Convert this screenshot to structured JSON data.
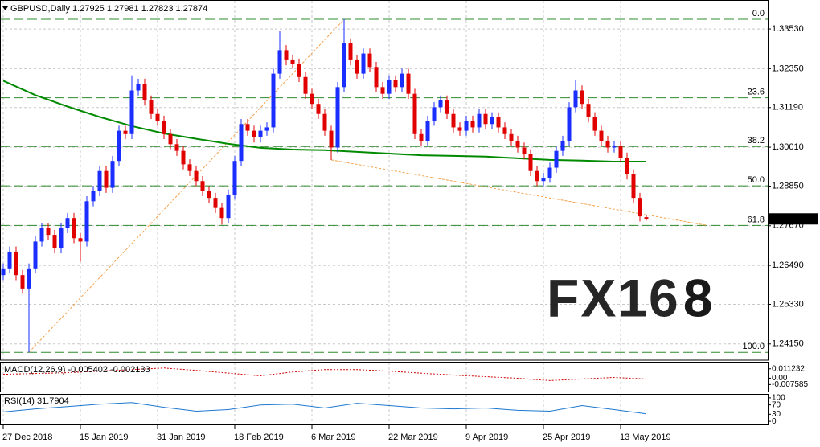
{
  "chart_data": {
    "type": "candlestick",
    "symbol": "GBPUSD,Daily",
    "colors": {
      "up": "#1a2eff",
      "down": "#e00000"
    },
    "ohlc": [
      [
        1.262,
        1.2655,
        1.2605,
        1.264
      ],
      [
        1.264,
        1.2705,
        1.2625,
        1.269
      ],
      [
        1.269,
        1.2705,
        1.2605,
        1.262
      ],
      [
        1.262,
        1.2635,
        1.2565,
        1.258
      ],
      [
        1.258,
        1.2655,
        1.239,
        1.264
      ],
      [
        1.264,
        1.2735,
        1.2625,
        1.272
      ],
      [
        1.272,
        1.2775,
        1.2705,
        1.276
      ],
      [
        1.276,
        1.2775,
        1.2725,
        1.274
      ],
      [
        1.274,
        1.2755,
        1.2685,
        1.27
      ],
      [
        1.27,
        1.2775,
        1.2685,
        1.276
      ],
      [
        1.276,
        1.2805,
        1.2745,
        1.279
      ],
      [
        1.279,
        1.2805,
        1.2715,
        1.273
      ],
      [
        1.273,
        1.2745,
        1.266,
        1.272
      ],
      [
        1.272,
        1.2855,
        1.2705,
        1.284
      ],
      [
        1.284,
        1.2885,
        1.2825,
        1.287
      ],
      [
        1.287,
        1.2945,
        1.2855,
        1.293
      ],
      [
        1.293,
        1.2945,
        1.2865,
        1.288
      ],
      [
        1.288,
        1.2975,
        1.2865,
        1.296
      ],
      [
        1.296,
        1.3065,
        1.2945,
        1.305
      ],
      [
        1.305,
        1.3065,
        1.3025,
        1.304
      ],
      [
        1.304,
        1.3215,
        1.3025,
        1.317
      ],
      [
        1.317,
        1.3205,
        1.3155,
        1.319
      ],
      [
        1.319,
        1.3205,
        1.3125,
        1.314
      ],
      [
        1.314,
        1.3155,
        1.3085,
        1.31
      ],
      [
        1.31,
        1.3115,
        1.3065,
        1.308
      ],
      [
        1.308,
        1.3095,
        1.3025,
        1.304
      ],
      [
        1.304,
        1.3055,
        1.2995,
        1.301
      ],
      [
        1.301,
        1.3025,
        1.2975,
        1.299
      ],
      [
        1.299,
        1.3005,
        1.2935,
        1.295
      ],
      [
        1.295,
        1.2965,
        1.2915,
        1.293
      ],
      [
        1.293,
        1.2945,
        1.2885,
        1.29
      ],
      [
        1.29,
        1.2915,
        1.2855,
        1.287
      ],
      [
        1.287,
        1.2885,
        1.2835,
        1.285
      ],
      [
        1.285,
        1.2865,
        1.2805,
        1.282
      ],
      [
        1.282,
        1.2835,
        1.277,
        1.279
      ],
      [
        1.279,
        1.2875,
        1.2775,
        1.286
      ],
      [
        1.286,
        1.2975,
        1.2845,
        1.296
      ],
      [
        1.296,
        1.3085,
        1.2945,
        1.307
      ],
      [
        1.307,
        1.3085,
        1.3035,
        1.305
      ],
      [
        1.305,
        1.3065,
        1.3015,
        1.303
      ],
      [
        1.303,
        1.3065,
        1.3015,
        1.305
      ],
      [
        1.305,
        1.3075,
        1.3035,
        1.306
      ],
      [
        1.306,
        1.3235,
        1.3045,
        1.322
      ],
      [
        1.322,
        1.3348,
        1.3205,
        1.329
      ],
      [
        1.329,
        1.3305,
        1.3245,
        1.326
      ],
      [
        1.326,
        1.3275,
        1.3235,
        1.325
      ],
      [
        1.325,
        1.3265,
        1.3195,
        1.321
      ],
      [
        1.321,
        1.3225,
        1.3145,
        1.316
      ],
      [
        1.316,
        1.3175,
        1.3115,
        1.313
      ],
      [
        1.313,
        1.3145,
        1.3085,
        1.31
      ],
      [
        1.31,
        1.3115,
        1.3035,
        1.305
      ],
      [
        1.305,
        1.3065,
        1.2963,
        1.3
      ],
      [
        1.3,
        1.3195,
        1.2985,
        1.318
      ],
      [
        1.318,
        1.3382,
        1.3165,
        1.331
      ],
      [
        1.331,
        1.3325,
        1.3245,
        1.326
      ],
      [
        1.326,
        1.3275,
        1.3205,
        1.322
      ],
      [
        1.322,
        1.3295,
        1.3205,
        1.328
      ],
      [
        1.328,
        1.3295,
        1.3225,
        1.324
      ],
      [
        1.324,
        1.3255,
        1.3165,
        1.318
      ],
      [
        1.318,
        1.3195,
        1.3145,
        1.316
      ],
      [
        1.316,
        1.3215,
        1.3145,
        1.32
      ],
      [
        1.32,
        1.3215,
        1.3165,
        1.318
      ],
      [
        1.318,
        1.3235,
        1.3165,
        1.322
      ],
      [
        1.322,
        1.3235,
        1.3145,
        1.316
      ],
      [
        1.316,
        1.3175,
        1.3025,
        1.304
      ],
      [
        1.304,
        1.3055,
        1.3005,
        1.302
      ],
      [
        1.302,
        1.3095,
        1.3005,
        1.308
      ],
      [
        1.308,
        1.3135,
        1.3065,
        1.312
      ],
      [
        1.312,
        1.3155,
        1.3105,
        1.314
      ],
      [
        1.314,
        1.3155,
        1.3085,
        1.31
      ],
      [
        1.31,
        1.3115,
        1.3045,
        1.306
      ],
      [
        1.306,
        1.3075,
        1.3035,
        1.305
      ],
      [
        1.305,
        1.3095,
        1.3035,
        1.308
      ],
      [
        1.308,
        1.3095,
        1.3045,
        1.306
      ],
      [
        1.306,
        1.3115,
        1.3045,
        1.31
      ],
      [
        1.31,
        1.3115,
        1.3055,
        1.307
      ],
      [
        1.307,
        1.3105,
        1.3055,
        1.309
      ],
      [
        1.309,
        1.3105,
        1.3045,
        1.306
      ],
      [
        1.306,
        1.3075,
        1.3025,
        1.304
      ],
      [
        1.304,
        1.3055,
        1.3005,
        1.302
      ],
      [
        1.302,
        1.3035,
        1.2985,
        1.3
      ],
      [
        1.3,
        1.3015,
        1.2965,
        1.298
      ],
      [
        1.298,
        1.2995,
        1.2915,
        1.293
      ],
      [
        1.293,
        1.2945,
        1.2885,
        1.29
      ],
      [
        1.29,
        1.2925,
        1.2885,
        1.291
      ],
      [
        1.291,
        1.2955,
        1.2895,
        1.294
      ],
      [
        1.294,
        1.3005,
        1.2925,
        1.299
      ],
      [
        1.299,
        1.3035,
        1.2975,
        1.302
      ],
      [
        1.302,
        1.3135,
        1.3005,
        1.312
      ],
      [
        1.312,
        1.32,
        1.3105,
        1.317
      ],
      [
        1.317,
        1.3185,
        1.3115,
        1.313
      ],
      [
        1.313,
        1.3145,
        1.3075,
        1.309
      ],
      [
        1.309,
        1.3105,
        1.3035,
        1.305
      ],
      [
        1.305,
        1.3065,
        1.3005,
        1.302
      ],
      [
        1.302,
        1.3035,
        1.2985,
        1.3
      ],
      [
        1.3,
        1.302,
        1.2985,
        1.3005
      ],
      [
        1.3005,
        1.302,
        1.2955,
        1.297
      ],
      [
        1.297,
        1.2985,
        1.2905,
        1.292
      ],
      [
        1.292,
        1.2935,
        1.2835,
        1.285
      ],
      [
        1.285,
        1.2865,
        1.278,
        1.2795
      ],
      [
        1.27925,
        1.27981,
        1.27823,
        1.27874
      ]
    ],
    "xlim": [
      -0.5,
      118.875
    ],
    "xticks": [
      {
        "value": 0,
        "label": "27 Dec 2018"
      },
      {
        "value": 12,
        "label": "15 Jan 2019"
      },
      {
        "value": 24,
        "label": "31 Jan 2019"
      },
      {
        "value": 36,
        "label": "18 Feb 2019"
      },
      {
        "value": 48,
        "label": "6 Mar 2019"
      },
      {
        "value": 60,
        "label": "22 Mar 2019"
      },
      {
        "value": 72,
        "label": "9 Apr 2019"
      },
      {
        "value": 84,
        "label": "25 Apr 2019"
      },
      {
        "value": 96,
        "label": "13 May 2019"
      }
    ],
    "ylim": [
      1.2369,
      1.3437
    ],
    "yticks": [
      {
        "value": 1.3353,
        "label": "1.33530"
      },
      {
        "value": 1.3235,
        "label": "1.32350"
      },
      {
        "value": 1.3119,
        "label": "1.31190"
      },
      {
        "value": 1.3001,
        "label": "1.30010"
      },
      {
        "value": 1.2885,
        "label": "1.28850"
      },
      {
        "value": 1.2767,
        "label": "1.27670"
      },
      {
        "value": 1.2649,
        "label": "1.26490"
      },
      {
        "value": 1.2533,
        "label": "1.25330"
      },
      {
        "value": 1.2415,
        "label": "1.24150"
      }
    ],
    "grid": true,
    "moving_average": {
      "color": "#008a00",
      "x": [
        0,
        5,
        10,
        15,
        20,
        25,
        30,
        35,
        40,
        45,
        50,
        55,
        60,
        65,
        70,
        75,
        80,
        85,
        90,
        95,
        100
      ],
      "values": [
        1.3199,
        1.3156,
        1.3122,
        1.3091,
        1.3064,
        1.3042,
        1.3026,
        1.3011,
        1.2999,
        1.2994,
        1.2992,
        1.2987,
        1.2982,
        1.2977,
        1.2975,
        1.2973,
        1.2968,
        1.2963,
        1.2961,
        1.2958,
        1.2958
      ]
    },
    "trendlines": [
      {
        "color": "#f4a04a",
        "x": [
          4,
          53
        ],
        "values": [
          1.239,
          1.3382
        ]
      },
      {
        "color": "#f4a04a",
        "x": [
          51,
          109.5
        ],
        "values": [
          1.2963,
          1.2768
        ]
      }
    ],
    "fibonacci": {
      "color": "#2e8b2e",
      "levels": [
        {
          "value": 1.3382,
          "label": "0.0"
        },
        {
          "value": 1.3148,
          "label": "23.6"
        },
        {
          "value": 1.3003,
          "label": "38.2"
        },
        {
          "value": 1.2886,
          "label": "50.0"
        },
        {
          "value": 1.2768,
          "label": "61.8"
        },
        {
          "value": 1.239,
          "label": "100.0"
        }
      ]
    },
    "watermark": [
      "FX16",
      "8"
    ],
    "macd": {
      "title": "MACD(12,26,9)",
      "main": -0.005402,
      "signal": -0.002133,
      "color": "#d00000",
      "ylim": [
        -0.0159,
        0.0187
      ],
      "yticks": [
        0.011232,
        {
          "value": 0,
          "label": "0.00"
        },
        -0.007585
      ],
      "x": [
        0,
        10,
        20,
        25,
        30,
        40,
        45,
        50,
        55,
        60,
        70,
        80,
        85,
        90,
        95,
        100
      ],
      "values": [
        0.0047,
        0.0066,
        0.0103,
        0.0122,
        0.0094,
        0.0028,
        0.0075,
        0.0103,
        0.0103,
        0.0084,
        0.0037,
        0.0,
        -0.0028,
        -0.0009,
        0.0009,
        -0.0009
      ]
    },
    "rsi": {
      "title": "RSI(14)",
      "color": "#1e78d0",
      "ylim": [
        -13.3,
        113.3
      ],
      "yticks": [
        100,
        70,
        30,
        0
      ],
      "x": [
        0,
        5,
        10,
        15,
        20,
        25,
        30,
        35,
        40,
        45,
        50,
        55,
        60,
        65,
        70,
        75,
        80,
        85,
        90,
        95,
        100
      ],
      "values": [
        40,
        53,
        63,
        73,
        80,
        60,
        43,
        50,
        70,
        73,
        57,
        77,
        67,
        57,
        53,
        57,
        47,
        43,
        67,
        50,
        31.7904
      ]
    }
  }
}
